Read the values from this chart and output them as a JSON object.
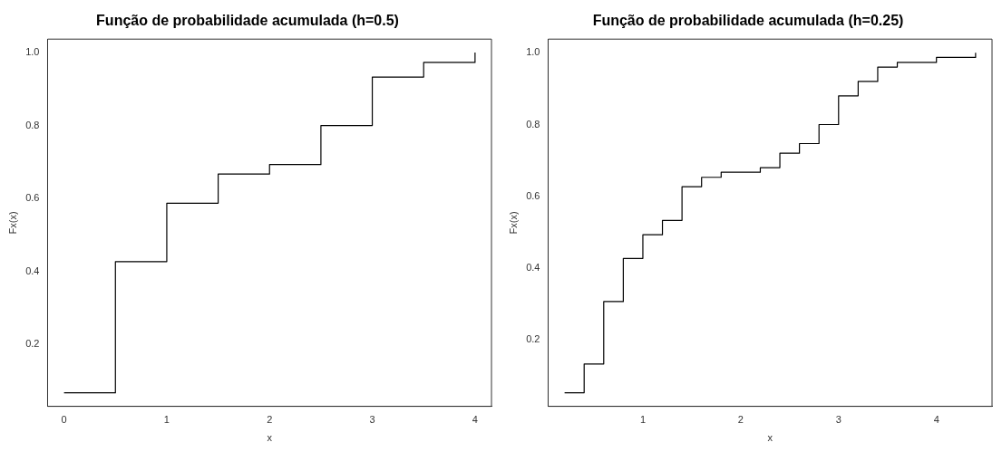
{
  "chart_data": [
    {
      "type": "step",
      "title": "Função de probabilidade acumulada (h=0.5)",
      "xlabel": "x",
      "ylabel": "Fx(x)",
      "x": [
        0,
        0.5,
        1,
        1.5,
        2,
        2.5,
        3,
        3.5,
        4
      ],
      "values": [
        0.067,
        0.427,
        0.587,
        0.667,
        0.693,
        0.8,
        0.933,
        0.973,
        1.0
      ],
      "color": "#000000",
      "xlim": [
        -0.16,
        4.16
      ],
      "ylim": [
        0.03,
        1.037
      ],
      "xticks": [
        0,
        1,
        2,
        3,
        4
      ],
      "yticks": [
        0.2,
        0.4,
        0.6,
        0.8,
        {
          "value": 1,
          "label": "1.0"
        }
      ]
    },
    {
      "type": "step",
      "title": "Função de probabilidade acumulada (h=0.25)",
      "xlabel": "x",
      "ylabel": "Fx(x)",
      "x": [
        0.2,
        0.4,
        0.6,
        0.8,
        1.0,
        1.2,
        1.4,
        1.6,
        1.8,
        2.2,
        2.4,
        2.6,
        2.8,
        3.0,
        3.2,
        3.4,
        3.6,
        4.0,
        4.4
      ],
      "values": [
        0.053,
        0.133,
        0.307,
        0.427,
        0.493,
        0.533,
        0.627,
        0.653,
        0.667,
        0.68,
        0.72,
        0.747,
        0.8,
        0.88,
        0.92,
        0.96,
        0.973,
        0.987,
        1.0
      ],
      "color": "#000000",
      "xlim": [
        0.032,
        4.568
      ],
      "ylim": [
        0.015,
        1.038
      ],
      "xticks": [
        1,
        2,
        3,
        4
      ],
      "yticks": [
        0.2,
        0.4,
        0.6,
        0.8,
        {
          "value": 1,
          "label": "1.0"
        }
      ]
    }
  ]
}
